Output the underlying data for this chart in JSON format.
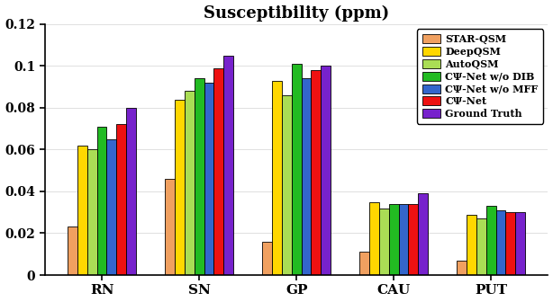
{
  "title": "Susceptibility (ppm)",
  "categories": [
    "RN",
    "SN",
    "GP",
    "CAU",
    "PUT"
  ],
  "series": {
    "STAR-QSM": [
      0.023,
      0.046,
      0.016,
      0.011,
      0.007
    ],
    "DeepQSM": [
      0.062,
      0.084,
      0.093,
      0.035,
      0.029
    ],
    "AutoQSM": [
      0.06,
      0.088,
      0.086,
      0.032,
      0.027
    ],
    "CY-Net w/o DIB": [
      0.071,
      0.094,
      0.101,
      0.034,
      0.033
    ],
    "CY-Net w/o MFF": [
      0.065,
      0.092,
      0.094,
      0.034,
      0.031
    ],
    "CY-Net": [
      0.072,
      0.099,
      0.098,
      0.034,
      0.03
    ],
    "Ground Truth": [
      0.08,
      0.105,
      0.1,
      0.039,
      0.03
    ]
  },
  "legend_labels": [
    "STAR-QSM",
    "DeepQSM",
    "AutoQSM",
    "CΨ-Net w/o DIB",
    "CΨ-Net w/o MFF",
    "CΨ-Net",
    "Ground Truth"
  ],
  "colors": {
    "STAR-QSM": "#F0A060",
    "DeepQSM": "#FFD700",
    "AutoQSM": "#AADD55",
    "CY-Net w/o DIB": "#22BB22",
    "CY-Net w/o MFF": "#3366CC",
    "CY-Net": "#EE1111",
    "Ground Truth": "#7722CC"
  },
  "ylim": [
    0,
    0.12
  ],
  "yticks": [
    0,
    0.02,
    0.04,
    0.06,
    0.08,
    0.1,
    0.12
  ],
  "bar_width": 0.1,
  "figsize": [
    6.14,
    3.36
  ],
  "dpi": 100
}
